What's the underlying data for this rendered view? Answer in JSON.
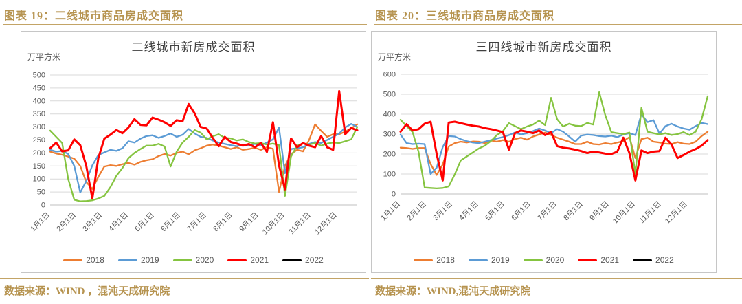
{
  "figures": [
    {
      "heading": "图表 19：二线城市商品房成交面积",
      "source": "数据来源：WIND ，混沌天成研究院"
    },
    {
      "heading": "图表 20：三线城市商品房成交面积",
      "source": "数据来源：WIND,混沌天成研究院"
    }
  ],
  "colors": {
    "gold_text": "#B6934F",
    "gold_rule": "#C3A466",
    "chart_title": "#404040",
    "axis_text": "#595959",
    "gridline": "#D9D9D9",
    "panel_border": "#C6C6C6"
  },
  "chart_data": [
    {
      "type": "line",
      "title": "二线城市新房成交面积",
      "unit": "万平方米",
      "ylim": [
        0,
        500
      ],
      "yticks": [
        0,
        50,
        100,
        150,
        200,
        250,
        300,
        350,
        400,
        450,
        500
      ],
      "x_labels": [
        "1月1日",
        "2月1日",
        "3月1日",
        "4月1日",
        "5月1日",
        "6月1日",
        "7月1日",
        "8月1日",
        "9月1日",
        "10月1日",
        "11月1日",
        "12月1日"
      ],
      "x_frequency": "weekly (52 points per year, Jan 1 – Dec 31)",
      "grid": "horizontal",
      "legend_position": "bottom",
      "series": [
        {
          "name": "2018",
          "color": "#ED7D31",
          "values": [
            205,
            198,
            193,
            186,
            178,
            150,
            88,
            62,
            108,
            148,
            153,
            150,
            157,
            162,
            155,
            166,
            172,
            176,
            188,
            196,
            190,
            200,
            205,
            195,
            210,
            218,
            228,
            232,
            228,
            222,
            215,
            222,
            212,
            215,
            220,
            212,
            222,
            216,
            50,
            150,
            196,
            212,
            206,
            250,
            310,
            285,
            262,
            272,
            272,
            282,
            295,
            310
          ]
        },
        {
          "name": "2019",
          "color": "#5B9BD5",
          "values": [
            212,
            205,
            208,
            196,
            150,
            48,
            92,
            152,
            192,
            202,
            212,
            208,
            218,
            245,
            240,
            255,
            265,
            268,
            258,
            265,
            275,
            262,
            270,
            292,
            275,
            262,
            258,
            248,
            240,
            235,
            230,
            226,
            232,
            228,
            235,
            230,
            240,
            252,
            298,
            122,
            215,
            218,
            222,
            235,
            242,
            238,
            250,
            262,
            275,
            298,
            312,
            300
          ]
        },
        {
          "name": "2020",
          "color": "#85C440",
          "values": [
            286,
            262,
            238,
            100,
            20,
            14,
            15,
            18,
            25,
            35,
            68,
            112,
            142,
            180,
            200,
            215,
            228,
            228,
            235,
            225,
            148,
            205,
            240,
            262,
            288,
            278,
            252,
            264,
            272,
            258,
            256,
            248,
            252,
            242,
            236,
            238,
            232,
            236,
            230,
            35,
            186,
            228,
            236,
            232,
            238,
            228,
            236,
            240,
            238,
            245,
            252,
            300
          ]
        },
        {
          "name": "2021",
          "color": "#FF0000",
          "values": [
            218,
            240,
            206,
            210,
            252,
            230,
            150,
            25,
            180,
            255,
            270,
            288,
            276,
            298,
            330,
            308,
            306,
            336,
            328,
            318,
            304,
            326,
            322,
            388,
            352,
            300,
            294,
            258,
            226,
            262,
            242,
            236,
            228,
            234,
            222,
            238,
            204,
            318,
            152,
            60,
            256,
            222,
            238,
            228,
            222,
            265,
            222,
            212,
            438,
            272,
            296,
            287
          ]
        },
        {
          "name": "2022",
          "color": "#000000",
          "values": []
        }
      ]
    },
    {
      "type": "line",
      "title": "三四线城市新房成交面积",
      "unit": "万平方米",
      "ylim": [
        0,
        600
      ],
      "yticks": [
        0,
        100,
        200,
        300,
        400,
        500,
        600
      ],
      "x_labels": [
        "1月1日",
        "2月1日",
        "3月1日",
        "4月1日",
        "5月1日",
        "6月1日",
        "7月1日",
        "8月1日",
        "9月1日",
        "10月1日",
        "11月1日",
        "12月1日"
      ],
      "x_frequency": "weekly (52 points per year, Jan 1 – Dec 31)",
      "grid": "horizontal",
      "legend_position": "bottom",
      "series": [
        {
          "name": "2018",
          "color": "#ED7D31",
          "values": [
            232,
            230,
            226,
            230,
            230,
            150,
            95,
            148,
            238,
            255,
            262,
            258,
            263,
            262,
            255,
            268,
            262,
            270,
            262,
            275,
            282,
            272,
            288,
            298,
            308,
            295,
            282,
            272,
            262,
            250,
            250,
            262,
            250,
            248,
            255,
            250,
            258,
            265,
            285,
            180,
            275,
            282,
            262,
            258,
            252,
            250,
            260,
            252,
            250,
            262,
            290,
            312
          ]
        },
        {
          "name": "2019",
          "color": "#5B9BD5",
          "values": [
            298,
            255,
            250,
            252,
            250,
            100,
            132,
            235,
            290,
            288,
            275,
            265,
            258,
            255,
            262,
            270,
            278,
            285,
            295,
            308,
            298,
            305,
            315,
            328,
            318,
            305,
            325,
            312,
            288,
            262,
            292,
            298,
            295,
            290,
            288,
            292,
            285,
            298,
            305,
            295,
            400,
            360,
            370,
            302,
            340,
            352,
            338,
            328,
            322,
            340,
            356,
            350
          ]
        },
        {
          "name": "2020",
          "color": "#85C440",
          "values": [
            372,
            340,
            310,
            210,
            32,
            30,
            28,
            30,
            38,
            98,
            168,
            188,
            208,
            228,
            242,
            265,
            295,
            315,
            355,
            340,
            325,
            338,
            348,
            368,
            345,
            482,
            375,
            338,
            352,
            342,
            340,
            356,
            348,
            510,
            395,
            310,
            305,
            300,
            308,
            100,
            432,
            312,
            305,
            298,
            305,
            295,
            300,
            310,
            295,
            312,
            375,
            490
          ]
        },
        {
          "name": "2021",
          "color": "#FF0000",
          "values": [
            312,
            350,
            318,
            325,
            352,
            362,
            200,
            68,
            358,
            362,
            355,
            348,
            342,
            338,
            330,
            325,
            318,
            310,
            222,
            305,
            318,
            312,
            305,
            318,
            295,
            310,
            240,
            232,
            228,
            222,
            215,
            205,
            212,
            208,
            202,
            200,
            212,
            282,
            205,
            68,
            218,
            205,
            212,
            215,
            282,
            248,
            180,
            195,
            212,
            225,
            242,
            270
          ]
        },
        {
          "name": "2022",
          "color": "#000000",
          "values": []
        }
      ]
    }
  ]
}
